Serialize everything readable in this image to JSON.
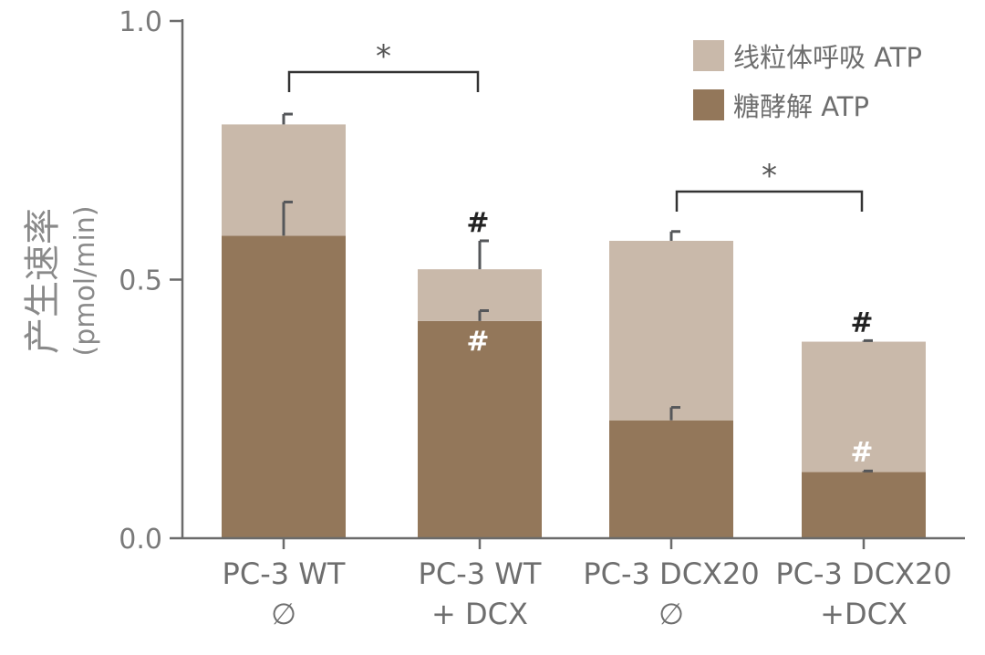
{
  "chart_data": {
    "type": "bar",
    "stacked": true,
    "title": "",
    "xlabel": "",
    "ylabel": "产生速率",
    "ylabel_unit": "(pmol/min)",
    "ylim": [
      0,
      1.0
    ],
    "yticks": [
      {
        "value": 0.0,
        "label": "0.0"
      },
      {
        "value": 0.5,
        "label": "0.5"
      },
      {
        "value": 1.0,
        "label": "1.0"
      }
    ],
    "categories": [
      {
        "line1": "PC-3 WT",
        "line2": "∅"
      },
      {
        "line1": "PC-3 WT",
        "line2": "+ DCX"
      },
      {
        "line1": "PC-3 DCX20",
        "line2": "∅"
      },
      {
        "line1": "PC-3 DCX20",
        "line2": "+DCX"
      }
    ],
    "series": [
      {
        "name": "糖酵解 ATP",
        "color": "#93775a",
        "values": [
          0.585,
          0.42,
          0.228,
          0.128
        ],
        "errors": [
          0.065,
          0.02,
          0.025,
          0.002
        ]
      },
      {
        "name": "线粒体呼吸 ATP",
        "color": "#c9b9aa",
        "values": [
          0.215,
          0.1,
          0.347,
          0.252
        ],
        "errors": [
          0.02,
          0.055,
          0.018,
          0.002
        ]
      }
    ],
    "legend": {
      "position": "top-right",
      "order": [
        1,
        0
      ]
    },
    "significance": [
      {
        "from": 0,
        "to": 1,
        "label": "*"
      },
      {
        "from": 2,
        "to": 3,
        "label": "*"
      }
    ],
    "markers": [
      {
        "category": 1,
        "position": "above-bar",
        "label": "#",
        "color": "#222222"
      },
      {
        "category": 1,
        "position": "inside-glycolysis",
        "label": "#",
        "color": "#ffffff"
      },
      {
        "category": 3,
        "position": "above-bar",
        "label": "#",
        "color": "#222222"
      },
      {
        "category": 3,
        "position": "inside-mito",
        "label": "#",
        "color": "#ffffff"
      }
    ],
    "colors": {
      "axis": "#6b6b6b",
      "error_bar": "#55575a",
      "bracket": "#333333"
    }
  }
}
